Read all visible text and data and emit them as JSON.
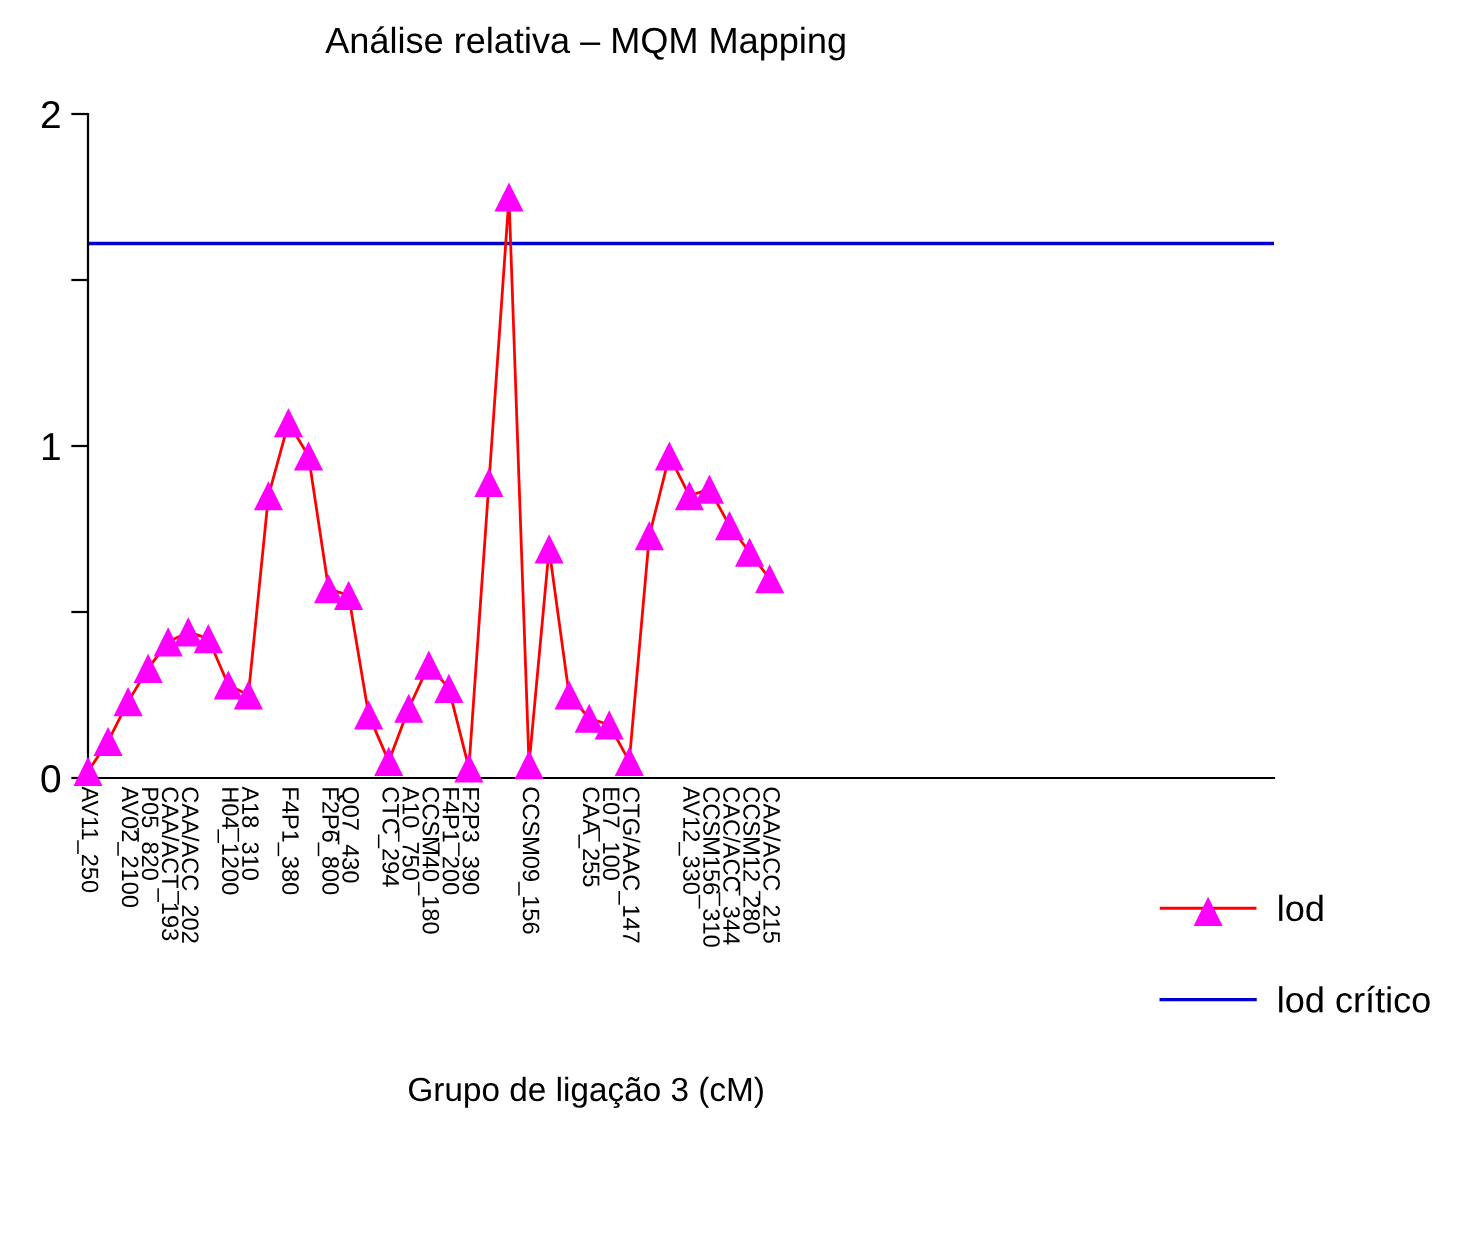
{
  "chart_data": {
    "type": "line",
    "title": "Análise relativa – MQM Mapping",
    "xlabel": "Grupo de ligação 3 (cM)",
    "categories": [
      "AV11_250",
      null,
      "AV02_2100",
      "P05_820",
      "CAA/ACT_193",
      "CAA/ACC_202",
      null,
      "H04_1200",
      "A18_310",
      null,
      "F4P1_380",
      null,
      "F2P6_800",
      "Q07_430",
      null,
      "CTC_294",
      "A10_750",
      "CCSM40_180",
      "F4P1_200",
      "F2P3_390",
      null,
      null,
      "CCSM09_156",
      null,
      null,
      "CAA_255",
      "E07_100",
      "CTG/AAC_147",
      null,
      null,
      "AV12_330",
      "CCSM156_310",
      "CAC/ACC_344",
      "CCSM12_280",
      "CAA/ACC_215"
    ],
    "series": [
      {
        "name": "lod",
        "color": "#ff0000",
        "colors": [
          "#ff00ff",
          "#ff00ff",
          "#ff00ff",
          "#ff00ff",
          "#ff00ff",
          "#ff00ff",
          "#ff00ff",
          "#ff00ff",
          "#ff00ff",
          "#ff00ff",
          "#ff00ff",
          "#ff00ff",
          "#ff00ff",
          "#ff00ff",
          "#ff00ff",
          "#ff00ff",
          "#ff00ff",
          "#ff00ff",
          "#ff00ff",
          "#ff00ff",
          "#ff00ff",
          "#ff00ff",
          "#ff00ff",
          "#ff00ff",
          "#ff00ff",
          "#ff00ff",
          "#ff00ff",
          "#ff00ff",
          "#ff00ff",
          "#ff00ff",
          "#ff00ff",
          "#ff00ff",
          "#ff00ff",
          "#ff00ff",
          "#ff00ff"
        ],
        "values": [
          0.02,
          0.11,
          0.23,
          0.33,
          0.41,
          0.44,
          0.42,
          0.28,
          0.25,
          0.85,
          1.07,
          0.97,
          0.57,
          0.55,
          0.19,
          0.05,
          0.21,
          0.34,
          0.27,
          0.03,
          0.89,
          1.75,
          0.04,
          0.69,
          0.25,
          0.18,
          0.16,
          0.05,
          0.73,
          0.97,
          0.85,
          0.87,
          0.76,
          0.68,
          0.6
        ]
      }
    ],
    "ref_lines": [
      {
        "axis": "y",
        "value": 1.61,
        "label": "lod crítico",
        "color": "#0000cc"
      }
    ],
    "ylim": [
      0,
      2
    ],
    "yticks": [
      0,
      {
        "value": 0.5,
        "label": null
      },
      1,
      {
        "value": 1.5,
        "label": null
      },
      2
    ],
    "marker": "triangle",
    "line_style": "solid",
    "legend": "bottom right"
  }
}
